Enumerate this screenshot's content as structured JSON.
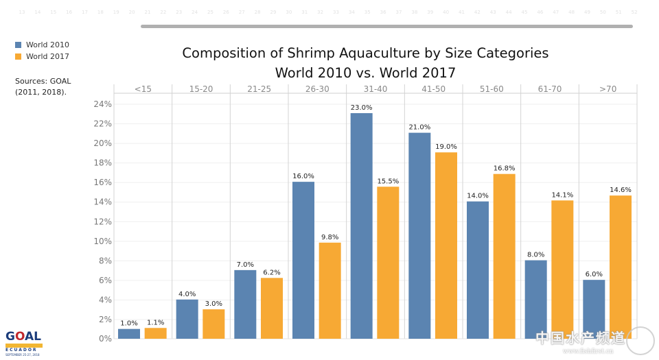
{
  "ruler": {
    "ticks": [
      "13",
      "14",
      "15",
      "16",
      "17",
      "18",
      "19",
      "20",
      "21",
      "22",
      "23",
      "24",
      "25",
      "26",
      "27",
      "28",
      "29",
      "30",
      "31",
      "32",
      "33",
      "34",
      "35",
      "36",
      "37",
      "38",
      "39",
      "40",
      "41",
      "42",
      "43",
      "44",
      "45",
      "46",
      "47",
      "48",
      "49",
      "50",
      "51",
      "52"
    ]
  },
  "legend": {
    "items": [
      {
        "label": "World 2010",
        "color": "#5b84b1"
      },
      {
        "label": "World 2017",
        "color": "#f7a934"
      }
    ]
  },
  "sources": {
    "line1": "Sources:  GOAL",
    "line2": "(2011, 2018)."
  },
  "logo": {
    "name_part1": "G",
    "name_part2": "O",
    "name_part3": "AL",
    "country": "ECUADOR",
    "date": "SEPTEMBER 25-27, 2018"
  },
  "watermark": {
    "text": "中国水产频道",
    "url": "www.fishfirst.cn"
  },
  "chart_data": {
    "type": "bar",
    "title": "Composition of Shrimp Aquaculture by Size Categories",
    "subtitle": "World 2010 vs. World 2017",
    "xlabel": "",
    "ylabel": "",
    "categories": [
      "<15",
      "15-20",
      "21-25",
      "26-30",
      "31-40",
      "41-50",
      "51-60",
      "61-70",
      ">70"
    ],
    "series": [
      {
        "name": "World 2010",
        "color": "#5b84b1",
        "values": [
          1.0,
          4.0,
          7.0,
          16.0,
          23.0,
          21.0,
          14.0,
          8.0,
          6.0
        ],
        "labels": [
          "1.0%",
          "4.0%",
          "7.0%",
          "16.0%",
          "23.0%",
          "21.0%",
          "14.0%",
          "8.0%",
          "6.0%"
        ]
      },
      {
        "name": "World 2017",
        "color": "#f7a934",
        "values": [
          1.1,
          3.0,
          6.2,
          9.8,
          15.5,
          19.0,
          16.8,
          14.1,
          14.6
        ],
        "labels": [
          "1.1%",
          "3.0%",
          "6.2%",
          "9.8%",
          "15.5%",
          "19.0%",
          "16.8%",
          "14.1%",
          "14.6%"
        ]
      }
    ],
    "yticks": [
      "0%",
      "2%",
      "4%",
      "6%",
      "8%",
      "10%",
      "12%",
      "14%",
      "16%",
      "18%",
      "20%",
      "22%",
      "24%"
    ],
    "ytick_values": [
      0,
      2,
      4,
      6,
      8,
      10,
      12,
      14,
      16,
      18,
      20,
      22,
      24
    ],
    "ylim": [
      0,
      24
    ],
    "grid": true,
    "legend_position": "top-left"
  }
}
